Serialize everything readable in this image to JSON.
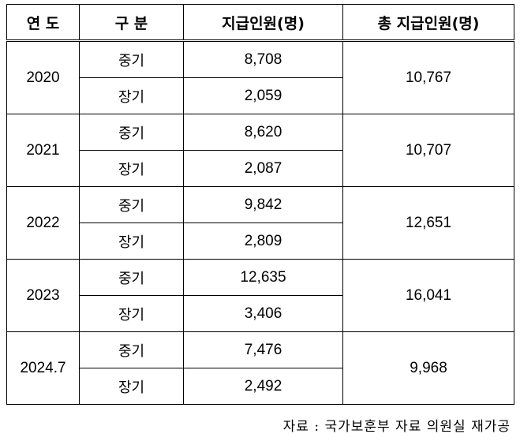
{
  "table": {
    "headers": {
      "year": "연 도",
      "type": "구 분",
      "count": "지급인원(명)",
      "total": "총 지급인원(명)"
    },
    "rows": [
      {
        "year": "2020",
        "total": "10,767",
        "items": [
          {
            "type": "중기",
            "count": "8,708"
          },
          {
            "type": "장기",
            "count": "2,059"
          }
        ]
      },
      {
        "year": "2021",
        "total": "10,707",
        "items": [
          {
            "type": "중기",
            "count": "8,620"
          },
          {
            "type": "장기",
            "count": "2,087"
          }
        ]
      },
      {
        "year": "2022",
        "total": "12,651",
        "items": [
          {
            "type": "중기",
            "count": "9,842"
          },
          {
            "type": "장기",
            "count": "2,809"
          }
        ]
      },
      {
        "year": "2023",
        "total": "16,041",
        "items": [
          {
            "type": "중기",
            "count": "12,635"
          },
          {
            "type": "장기",
            "count": "3,406"
          }
        ]
      },
      {
        "year": "2024.7",
        "total": "9,968",
        "items": [
          {
            "type": "중기",
            "count": "7,476"
          },
          {
            "type": "장기",
            "count": "2,492"
          }
        ]
      }
    ]
  },
  "source": "자료 : 국가보훈부 자료 의원실 재가공"
}
